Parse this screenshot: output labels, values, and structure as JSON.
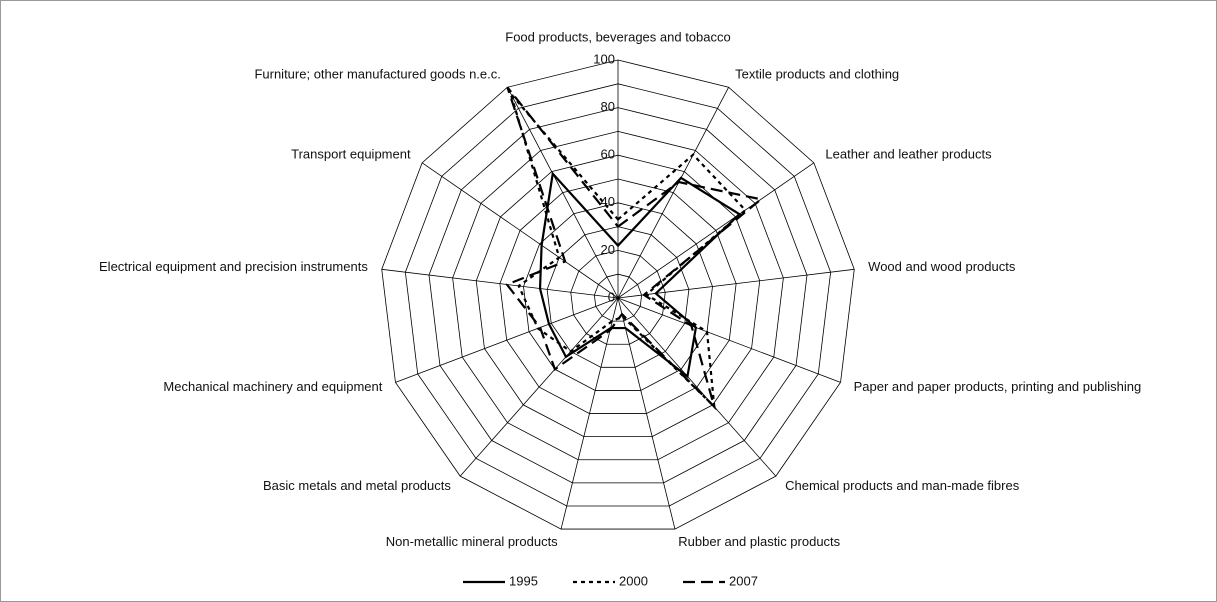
{
  "chart_data": {
    "type": "radar",
    "categories": [
      "Food products, beverages and tobacco",
      "Textile products and clothing",
      "Leather and leather products",
      "Wood and wood products",
      "Paper and paper products, printing and publishing",
      "Chemical products and man-made fibres",
      "Rubber and plastic products",
      "Non-metallic mineral products",
      "Basic metals and metal products",
      "Mechanical machinery and equipment",
      "Electrical equipment and precision instruments",
      "Transport equipment",
      "Furniture; other manufactured goods n.e.c."
    ],
    "series": [
      {
        "name": "1995",
        "color": "#000000",
        "dash": "solid",
        "values": [
          22,
          57,
          62,
          16,
          35,
          44,
          13,
          13,
          33,
          31,
          33,
          39,
          59
        ]
      },
      {
        "name": "2000",
        "color": "#000000",
        "dash": "short",
        "values": [
          33,
          68,
          65,
          12,
          40,
          61,
          8,
          10,
          30,
          36,
          42,
          30,
          97
        ]
      },
      {
        "name": "2007",
        "color": "#000000",
        "dash": "long",
        "values": [
          30,
          55,
          73,
          11,
          33,
          61,
          7,
          14,
          40,
          35,
          47,
          27,
          100
        ]
      }
    ],
    "ylim": [
      0,
      100
    ],
    "yticks": [
      0,
      20,
      40,
      60,
      80,
      100
    ],
    "grid": true,
    "legend": "bottom"
  }
}
